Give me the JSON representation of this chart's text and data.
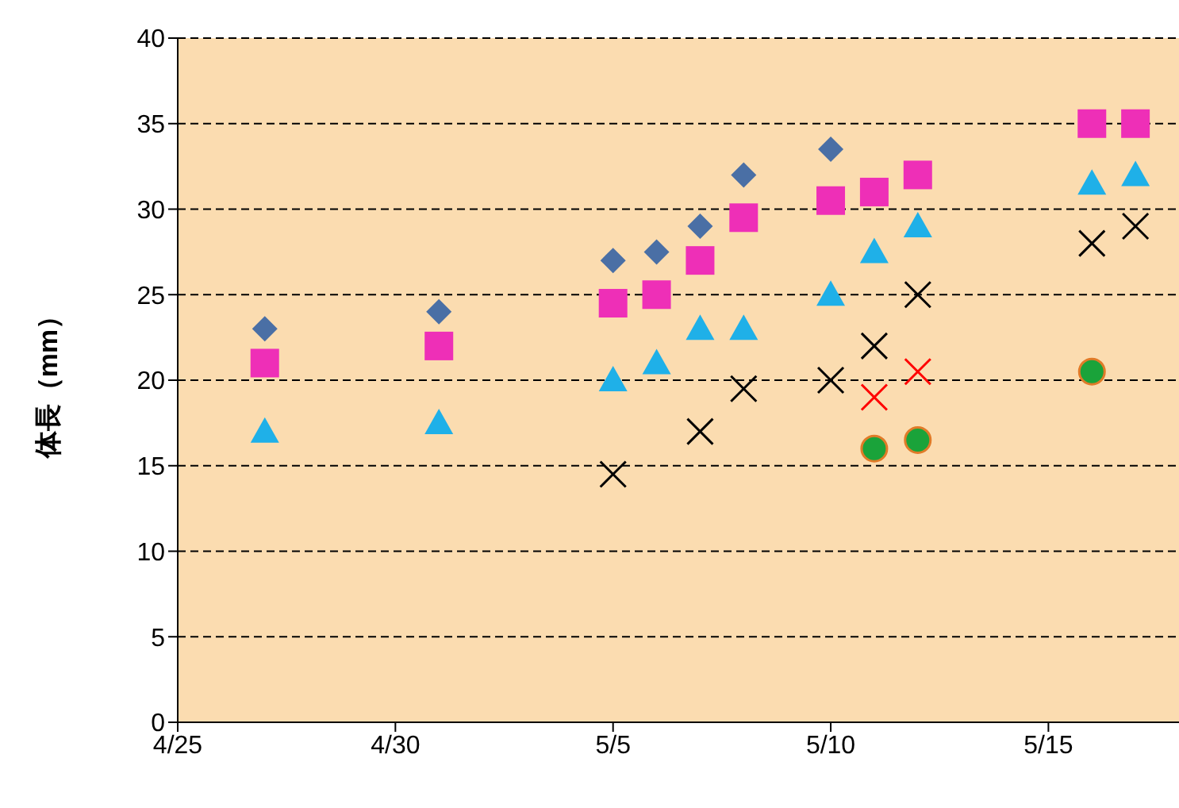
{
  "chart_data": {
    "type": "scatter",
    "ylabel": "体長（mm）",
    "xlim": [
      "--04-25",
      "--05-18"
    ],
    "xticks": [
      {
        "value": "--04-25",
        "label": "4/25"
      },
      {
        "value": "--04-30",
        "label": "4/30"
      },
      {
        "value": "--05-05",
        "label": "5/5"
      },
      {
        "value": "--05-10",
        "label": "5/10"
      },
      {
        "value": "--05-15",
        "label": "5/15"
      }
    ],
    "ylim": [
      0,
      40
    ],
    "yticks": [
      0,
      5,
      10,
      15,
      20,
      25,
      30,
      35,
      40
    ],
    "grid": "y",
    "legend": false,
    "series": [
      {
        "color": "#4a6fa5",
        "marker": "diamond",
        "x": [
          "--04-27",
          "--05-01",
          "--05-05",
          "--05-06",
          "--05-07",
          "--05-08",
          "--05-10"
        ],
        "values": [
          23,
          24,
          27,
          27.5,
          29,
          32,
          33.5
        ]
      },
      {
        "color": "#ee2fb7",
        "marker": "square",
        "x": [
          "--04-27",
          "--05-01",
          "--05-05",
          "--05-06",
          "--05-07",
          "--05-08",
          "--05-10",
          "--05-11",
          "--05-12",
          "--05-16",
          "--05-17"
        ],
        "values": [
          21,
          22,
          24.5,
          25,
          27,
          29.5,
          30.5,
          31,
          32,
          35,
          35
        ]
      },
      {
        "color": "#1fb0e8",
        "marker": "triangle",
        "x": [
          "--04-27",
          "--05-01",
          "--05-05",
          "--05-06",
          "--05-07",
          "--05-08",
          "--05-10",
          "--05-11",
          "--05-12",
          "--05-16",
          "--05-17"
        ],
        "values": [
          17,
          17.5,
          20,
          21,
          23,
          23,
          25,
          27.5,
          29,
          31.5,
          32
        ]
      },
      {
        "color": "#000000",
        "marker": "cross",
        "x": [
          "--05-05",
          "--05-07",
          "--05-08",
          "--05-10",
          "--05-11",
          "--05-12",
          "--05-16",
          "--05-17"
        ],
        "values": [
          14.5,
          17,
          19.5,
          20,
          22,
          25,
          28,
          29
        ]
      },
      {
        "color": "#ff0000",
        "marker": "cross",
        "x": [
          "--05-11",
          "--05-12"
        ],
        "values": [
          19,
          20.5
        ]
      },
      {
        "color": "#1aa33a",
        "marker": "circle",
        "x": [
          "--05-11",
          "--05-12",
          "--05-16"
        ],
        "values": [
          16,
          16.5,
          20.5
        ]
      }
    ]
  }
}
